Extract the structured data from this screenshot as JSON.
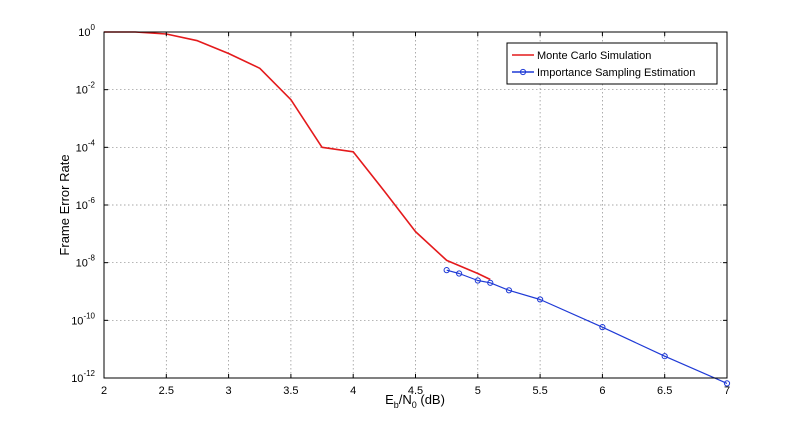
{
  "chart_data": {
    "type": "line",
    "title": "",
    "xlabel": {
      "main": "E",
      "sub1": "b",
      "mid": "/N",
      "sub2": "0",
      "tail": " (dB)"
    },
    "ylabel": "Frame Error Rate",
    "xlim": [
      2,
      7
    ],
    "ylim": [
      1e-12,
      1
    ],
    "y_scale": "log",
    "grid": true,
    "legend_position": "top-right",
    "x_ticks": [
      "2",
      "2.5",
      "3",
      "3.5",
      "4",
      "4.5",
      "5",
      "5.5",
      "6",
      "6.5",
      "7"
    ],
    "y_ticks": [
      {
        "base": "10",
        "exp": "0"
      },
      {
        "base": "10",
        "exp": "-2"
      },
      {
        "base": "10",
        "exp": "-4"
      },
      {
        "base": "10",
        "exp": "-6"
      },
      {
        "base": "10",
        "exp": "-8"
      },
      {
        "base": "10",
        "exp": "-10"
      },
      {
        "base": "10",
        "exp": "-12"
      }
    ],
    "series": [
      {
        "name": "Monte Carlo Simulation",
        "color": "#e41a1c",
        "marker": "none",
        "x": [
          2.0,
          2.25,
          2.5,
          2.75,
          3.0,
          3.25,
          3.5,
          3.75,
          4.0,
          4.25,
          4.5,
          4.75,
          5.0,
          5.1
        ],
        "y": [
          1.0,
          1.0,
          0.85,
          0.5,
          0.18,
          0.055,
          0.0045,
          0.0001,
          7e-05,
          3e-06,
          1.2e-07,
          1.2e-08,
          4.2e-09,
          2.6e-09
        ]
      },
      {
        "name": "Importance Sampling Estimation",
        "color": "#1f3ad6",
        "marker": "circle",
        "x": [
          4.75,
          4.85,
          5.0,
          5.1,
          5.25,
          5.5,
          6.0,
          6.5,
          7.0
        ],
        "y": [
          5.5e-09,
          4.2e-09,
          2.4e-09,
          2e-09,
          1.1e-09,
          5.3e-10,
          5.8e-11,
          5.7e-12,
          6.5e-13
        ]
      }
    ]
  }
}
